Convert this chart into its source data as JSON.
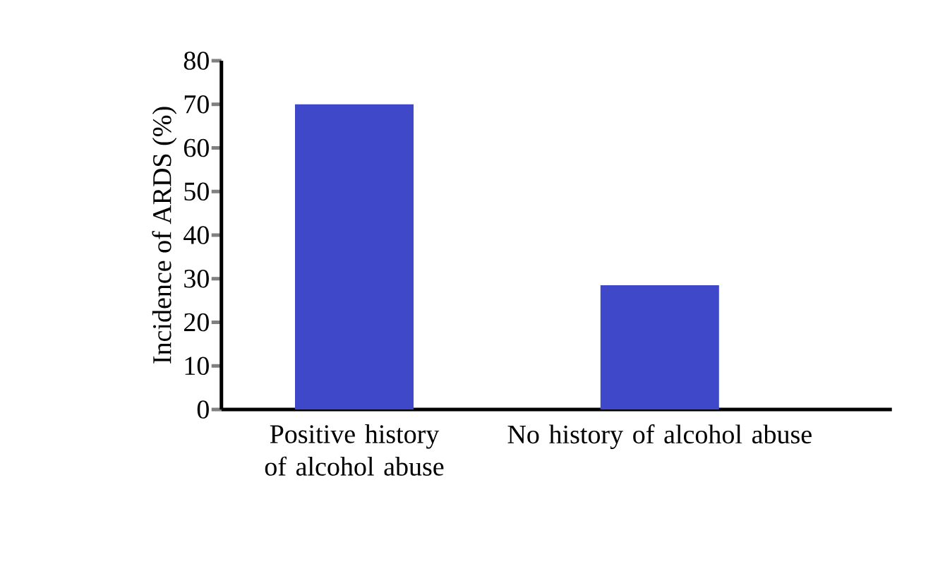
{
  "chart_data": {
    "type": "bar",
    "ylabel": "Incidence of ARDS (%)",
    "categories": [
      "Positive history of alcohol abuse",
      "No history of alcohol abuse"
    ],
    "values": [
      70,
      28.5
    ],
    "color": "#3f48c8",
    "ylim": [
      0,
      80
    ],
    "yticks": [
      0,
      10,
      20,
      30,
      40,
      50,
      60,
      70,
      80
    ],
    "grid": false
  }
}
